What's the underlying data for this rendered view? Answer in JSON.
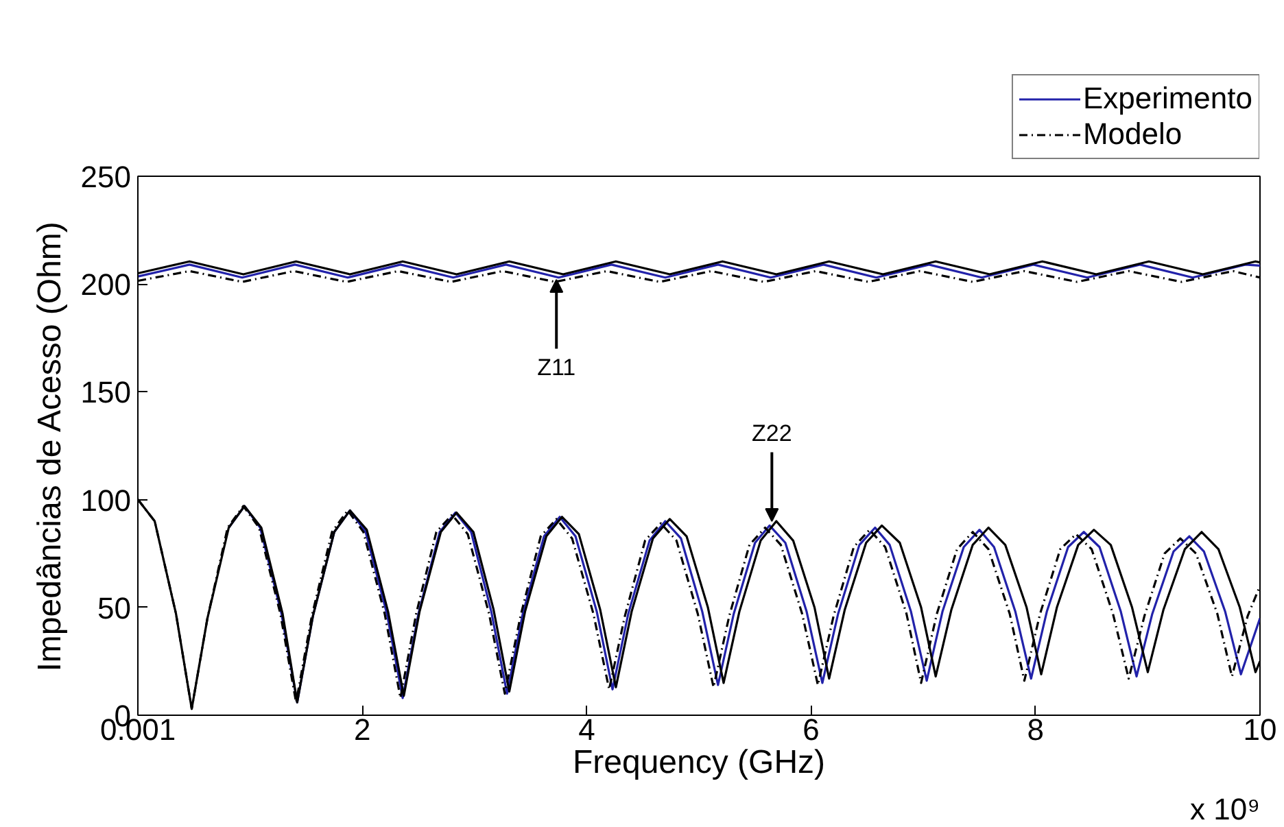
{
  "chart_data": {
    "type": "line",
    "xlabel": "Frequency (GHz)",
    "ylabel": "Impedâncias de Acesso (Ohm)",
    "xlim": [
      0,
      10
    ],
    "ylim": [
      0,
      250
    ],
    "xticks": [
      0.001,
      2,
      4,
      6,
      8,
      10
    ],
    "yticks": [
      0,
      50,
      100,
      150,
      200,
      250
    ],
    "grid": false,
    "legend": "top right",
    "annotations": [
      {
        "text": "Z11",
        "x": 3.73,
        "y": 202
      },
      {
        "text": "Z22",
        "x": 5.65,
        "y": 90
      },
      "x 10⁹"
    ],
    "series": [
      {
        "name": "Experimento",
        "color": "#2222aa",
        "line_style": "solid",
        "x": [
          0.001,
          0.46,
          0.93,
          1.4,
          1.87,
          2.34,
          2.81,
          3.28,
          3.75,
          4.22,
          4.7,
          5.17,
          5.64,
          6.11,
          6.58,
          7.05,
          7.52,
          7.98,
          8.46,
          8.93,
          9.4,
          9.87,
          10,
          null,
          0.81,
          0.95,
          1.09,
          1.28,
          1.42,
          1.56,
          1.75,
          1.89,
          2.03,
          2.22,
          2.36,
          2.5,
          2.69,
          2.83,
          2.97,
          3.15,
          3.29,
          3.43,
          3.62,
          3.76,
          3.9,
          4.09,
          4.23,
          4.37,
          4.56,
          4.7,
          4.84,
          5.03,
          5.17,
          5.31,
          5.5,
          5.63,
          5.77,
          5.96,
          6.1,
          6.24,
          6.43,
          6.57,
          6.7,
          6.89,
          7.03,
          7.17,
          7.36,
          7.5,
          7.63,
          7.82,
          7.96,
          8.1,
          8.29,
          8.43,
          8.57,
          8.76,
          8.9,
          9.04,
          9.23,
          9.37,
          9.5,
          9.69,
          9.83,
          10
        ],
        "values": [
          203.5,
          209,
          203,
          209,
          203,
          209,
          203,
          209,
          203,
          209,
          203,
          209,
          203,
          209,
          203,
          209,
          203,
          209,
          203,
          209,
          203,
          209,
          208.5,
          null,
          87,
          97,
          87,
          47,
          6,
          46,
          85,
          95,
          85,
          47,
          8,
          47,
          85,
          94,
          85,
          48,
          10,
          47,
          83,
          92,
          83,
          48,
          12,
          47,
          81,
          90,
          82,
          48,
          14,
          47,
          80,
          88,
          80,
          48,
          15,
          47,
          79,
          87,
          79,
          48,
          16,
          48,
          78,
          86,
          78,
          48,
          17,
          48,
          78,
          85,
          78,
          48,
          18,
          47,
          76,
          83,
          76,
          48,
          19,
          45
        ]
      },
      {
        "color": "#000000",
        "line_style": "solid",
        "x": [
          0.001,
          0.46,
          0.94,
          1.41,
          1.89,
          2.36,
          2.84,
          3.31,
          3.79,
          4.26,
          4.74,
          5.21,
          5.69,
          6.16,
          6.64,
          7.11,
          7.59,
          8.06,
          8.54,
          9.01,
          9.49,
          9.96,
          10,
          null,
          0.001,
          0.15,
          0.34,
          0.48,
          0.62,
          0.81,
          0.95,
          1.1,
          1.29,
          1.42,
          1.56,
          1.75,
          1.89,
          2.04,
          2.23,
          2.37,
          2.51,
          2.7,
          2.84,
          2.99,
          3.17,
          3.31,
          3.45,
          3.64,
          3.78,
          3.93,
          4.12,
          4.26,
          4.4,
          4.59,
          4.74,
          4.89,
          5.08,
          5.22,
          5.36,
          5.55,
          5.69,
          5.84,
          6.03,
          6.16,
          6.3,
          6.49,
          6.63,
          6.79,
          6.98,
          7.11,
          7.25,
          7.44,
          7.58,
          7.73,
          7.92,
          8.05,
          8.19,
          8.38,
          8.52,
          8.67,
          8.86,
          9.0,
          9.14,
          9.33,
          9.48,
          9.63,
          9.82,
          9.96,
          10
        ],
        "values": [
          205,
          210.5,
          204.5,
          210.5,
          204.5,
          210.5,
          204.5,
          210.5,
          204.5,
          210.5,
          204.5,
          210.5,
          204.5,
          210.5,
          204.5,
          210.5,
          204.5,
          210.5,
          204.5,
          210.5,
          204.5,
          210.5,
          210,
          null,
          100,
          90,
          47,
          3,
          45,
          87,
          97,
          87,
          47,
          6,
          46,
          85,
          95,
          86,
          48,
          9,
          48,
          85,
          94,
          85,
          49,
          11,
          48,
          83,
          92,
          84,
          49,
          13,
          48,
          82,
          91,
          83,
          50,
          15,
          48,
          81,
          90,
          81,
          50,
          17,
          49,
          80,
          88,
          80,
          50,
          18,
          49,
          79,
          87,
          79,
          50,
          19,
          50,
          79,
          86,
          79,
          50,
          20,
          49,
          77,
          85,
          77,
          50,
          20,
          25
        ]
      },
      {
        "name": "Modelo",
        "color": "#000000",
        "line_style": "dashed",
        "x": [
          0.001,
          0.46,
          0.93,
          1.39,
          1.86,
          2.32,
          2.79,
          3.25,
          3.72,
          4.18,
          4.65,
          5.11,
          5.58,
          6.04,
          6.51,
          6.97,
          7.44,
          7.9,
          8.37,
          8.83,
          9.3,
          9.76,
          10,
          null,
          0.001,
          0.15,
          0.34,
          0.48,
          0.62,
          0.8,
          0.94,
          1.08,
          1.27,
          1.41,
          1.55,
          1.73,
          1.87,
          2.01,
          2.2,
          2.34,
          2.48,
          2.66,
          2.8,
          2.94,
          3.13,
          3.27,
          3.41,
          3.59,
          3.73,
          3.87,
          4.06,
          4.2,
          4.34,
          4.52,
          4.66,
          4.8,
          4.99,
          5.13,
          5.27,
          5.45,
          5.59,
          5.73,
          5.92,
          6.06,
          6.2,
          6.38,
          6.52,
          6.66,
          6.85,
          6.98,
          7.12,
          7.3,
          7.44,
          7.58,
          7.77,
          7.9,
          8.04,
          8.22,
          8.36,
          8.5,
          8.69,
          8.83,
          8.97,
          9.15,
          9.29,
          9.43,
          9.62,
          9.75,
          9.89,
          10
        ],
        "values": [
          201.5,
          206,
          201,
          206,
          201,
          206,
          201,
          206,
          201,
          206,
          201,
          206,
          201,
          206,
          201,
          206,
          201,
          206,
          201,
          206,
          201,
          206,
          203,
          null,
          100,
          90,
          47,
          3,
          45,
          87,
          97,
          87,
          47,
          6,
          46,
          85,
          95,
          85,
          47,
          8,
          47,
          85,
          93,
          84,
          47,
          10,
          46,
          83,
          91,
          82,
          47,
          12,
          46,
          81,
          89,
          81,
          47,
          13,
          46,
          79,
          87,
          79,
          47,
          14,
          46,
          78,
          86,
          78,
          47,
          15,
          47,
          77,
          85,
          77,
          47,
          16,
          47,
          77,
          84,
          77,
          47,
          17,
          46,
          75,
          82,
          75,
          47,
          18,
          46,
          60
        ]
      }
    ]
  }
}
